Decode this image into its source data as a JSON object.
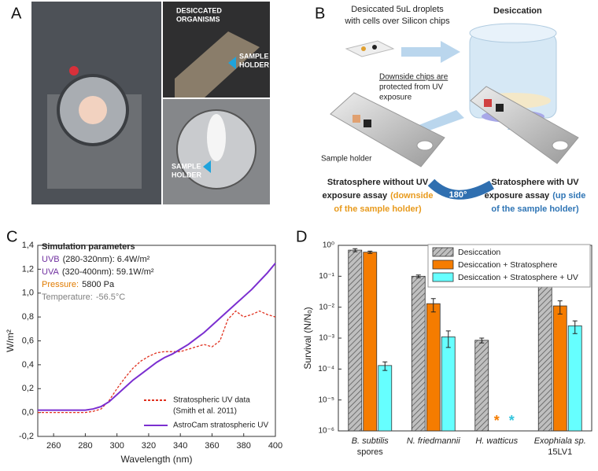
{
  "panels": {
    "a": "A",
    "b": "B",
    "c": "C",
    "d": "D"
  },
  "panel_a": {
    "organisms_label": [
      "DESICCATED",
      "ORGANISMS"
    ],
    "holder_label_1": [
      "SAMPLE",
      "HOLDER"
    ],
    "holder_label_2": [
      "SAMPLE",
      "HOLDER"
    ]
  },
  "panel_b": {
    "droplets": [
      "Desiccated 5uL droplets",
      "with cells over Silicon chips"
    ],
    "desiccation": "Desiccation",
    "downside_note": [
      "Downside chips are",
      "protected from UV",
      "exposure"
    ],
    "sample_holder": "Sample holder",
    "rotation": "180°",
    "left_caption": {
      "line1": "Stratosphere without UV",
      "line2": "exposure assay",
      "line2_colored": "(downside",
      "line3": "of the sample holder)"
    },
    "right_caption": {
      "line1": "Stratosphere with UV",
      "line2": "exposure assay",
      "line2_colored": "(up side",
      "line3": "of the sample holder)"
    }
  },
  "chart_data": [
    {
      "type": "line",
      "x_label": "Wavelength (nm)",
      "y_label": "W/m²",
      "parameters_title": "Simulation parameters",
      "parameters": [
        {
          "key": "UVB",
          "text": "(280-320nm): 6.4W/m²",
          "color": "#7030a0"
        },
        {
          "key": "UVA",
          "text": "(320-400nm): 59.1W/m²",
          "color": "#7030a0"
        },
        {
          "key": "Pressure:",
          "text": "5800 Pa",
          "color": "#e07b00"
        },
        {
          "key": "Temperature:",
          "text": "-56.5°C",
          "color": "#808080"
        }
      ],
      "x": [
        250,
        255,
        260,
        265,
        270,
        275,
        280,
        285,
        290,
        295,
        300,
        305,
        310,
        315,
        320,
        325,
        330,
        335,
        340,
        345,
        350,
        355,
        360,
        365,
        370,
        375,
        380,
        385,
        390,
        395,
        400
      ],
      "series": [
        {
          "name": [
            "Stratospheric UV data",
            "(Smith et al. 2011)"
          ],
          "color": "#e0301e",
          "dashed": true,
          "values": [
            0,
            0,
            0,
            0,
            0,
            0,
            0,
            0.01,
            0.03,
            0.1,
            0.2,
            0.29,
            0.37,
            0.43,
            0.47,
            0.5,
            0.51,
            0.51,
            0.51,
            0.53,
            0.55,
            0.57,
            0.55,
            0.6,
            0.78,
            0.85,
            0.8,
            0.82,
            0.85,
            0.82,
            0.8
          ]
        },
        {
          "name": [
            "AstroCam stratospheric UV"
          ],
          "color": "#7b2fd0",
          "dashed": false,
          "values": [
            0.02,
            0.02,
            0.02,
            0.02,
            0.02,
            0.02,
            0.02,
            0.03,
            0.05,
            0.09,
            0.15,
            0.21,
            0.27,
            0.32,
            0.37,
            0.42,
            0.46,
            0.49,
            0.53,
            0.57,
            0.62,
            0.67,
            0.73,
            0.79,
            0.85,
            0.91,
            0.97,
            1.03,
            1.1,
            1.17,
            1.25
          ]
        }
      ],
      "xlim": [
        250,
        400
      ],
      "xticks": [
        260,
        280,
        300,
        320,
        340,
        360,
        380,
        400
      ],
      "ylim": [
        -0.2,
        1.4
      ],
      "yticks": [
        {
          "value": -0.2,
          "label": "-0,2"
        },
        {
          "value": 0,
          "label": "0,0"
        },
        {
          "value": 0.2,
          "label": "0,2"
        },
        {
          "value": 0.4,
          "label": "0,4"
        },
        {
          "value": 0.6,
          "label": "0,6"
        },
        {
          "value": 0.8,
          "label": "0,8"
        },
        {
          "value": 1.0,
          "label": "1,0"
        },
        {
          "value": 1.2,
          "label": "1,2"
        },
        {
          "value": 1.4,
          "label": "1,4"
        }
      ]
    },
    {
      "type": "bar",
      "log_y": true,
      "y_label": "Survival (N/Nₒ)",
      "legend": "upper right",
      "categories": [
        [
          "B. subtilis",
          "spores"
        ],
        [
          "N. friedmannii"
        ],
        [
          "H. watticus"
        ],
        [
          "Exophiala sp.",
          "15LV1"
        ]
      ],
      "series": [
        {
          "name": "Desiccation",
          "color": "#bfbfbf",
          "hatch": true,
          "values": [
            0.7,
            0.1,
            0.00085,
            0.22
          ],
          "errors": [
            0.08,
            0.01,
            0.00015,
            0.04
          ]
        },
        {
          "name": "Desiccation + Stratosphere",
          "color": "#f57c00",
          "hatch": false,
          "values": [
            0.6,
            0.013,
            null,
            0.011
          ],
          "errors": [
            0.05,
            0.006,
            null,
            0.005
          ],
          "null_label": "*"
        },
        {
          "name": "Desiccation + Stratosphere + UV",
          "color": "#66ffff",
          "hatch": false,
          "values": [
            0.00013,
            0.0011,
            null,
            0.0025
          ],
          "errors": [
            4e-05,
            0.0006,
            null,
            0.0011
          ],
          "null_label": "*"
        }
      ],
      "ylim": [
        1e-06,
        1
      ],
      "yticks": [
        {
          "value": 1e-06,
          "label": "10⁻⁶"
        },
        {
          "value": 1e-05,
          "label": "10⁻⁵"
        },
        {
          "value": 0.0001,
          "label": "10⁻⁴"
        },
        {
          "value": 0.001,
          "label": "10⁻³"
        },
        {
          "value": 0.01,
          "label": "10⁻²"
        },
        {
          "value": 0.1,
          "label": "10⁻¹"
        },
        {
          "value": 1,
          "label": "10⁰"
        }
      ]
    }
  ]
}
